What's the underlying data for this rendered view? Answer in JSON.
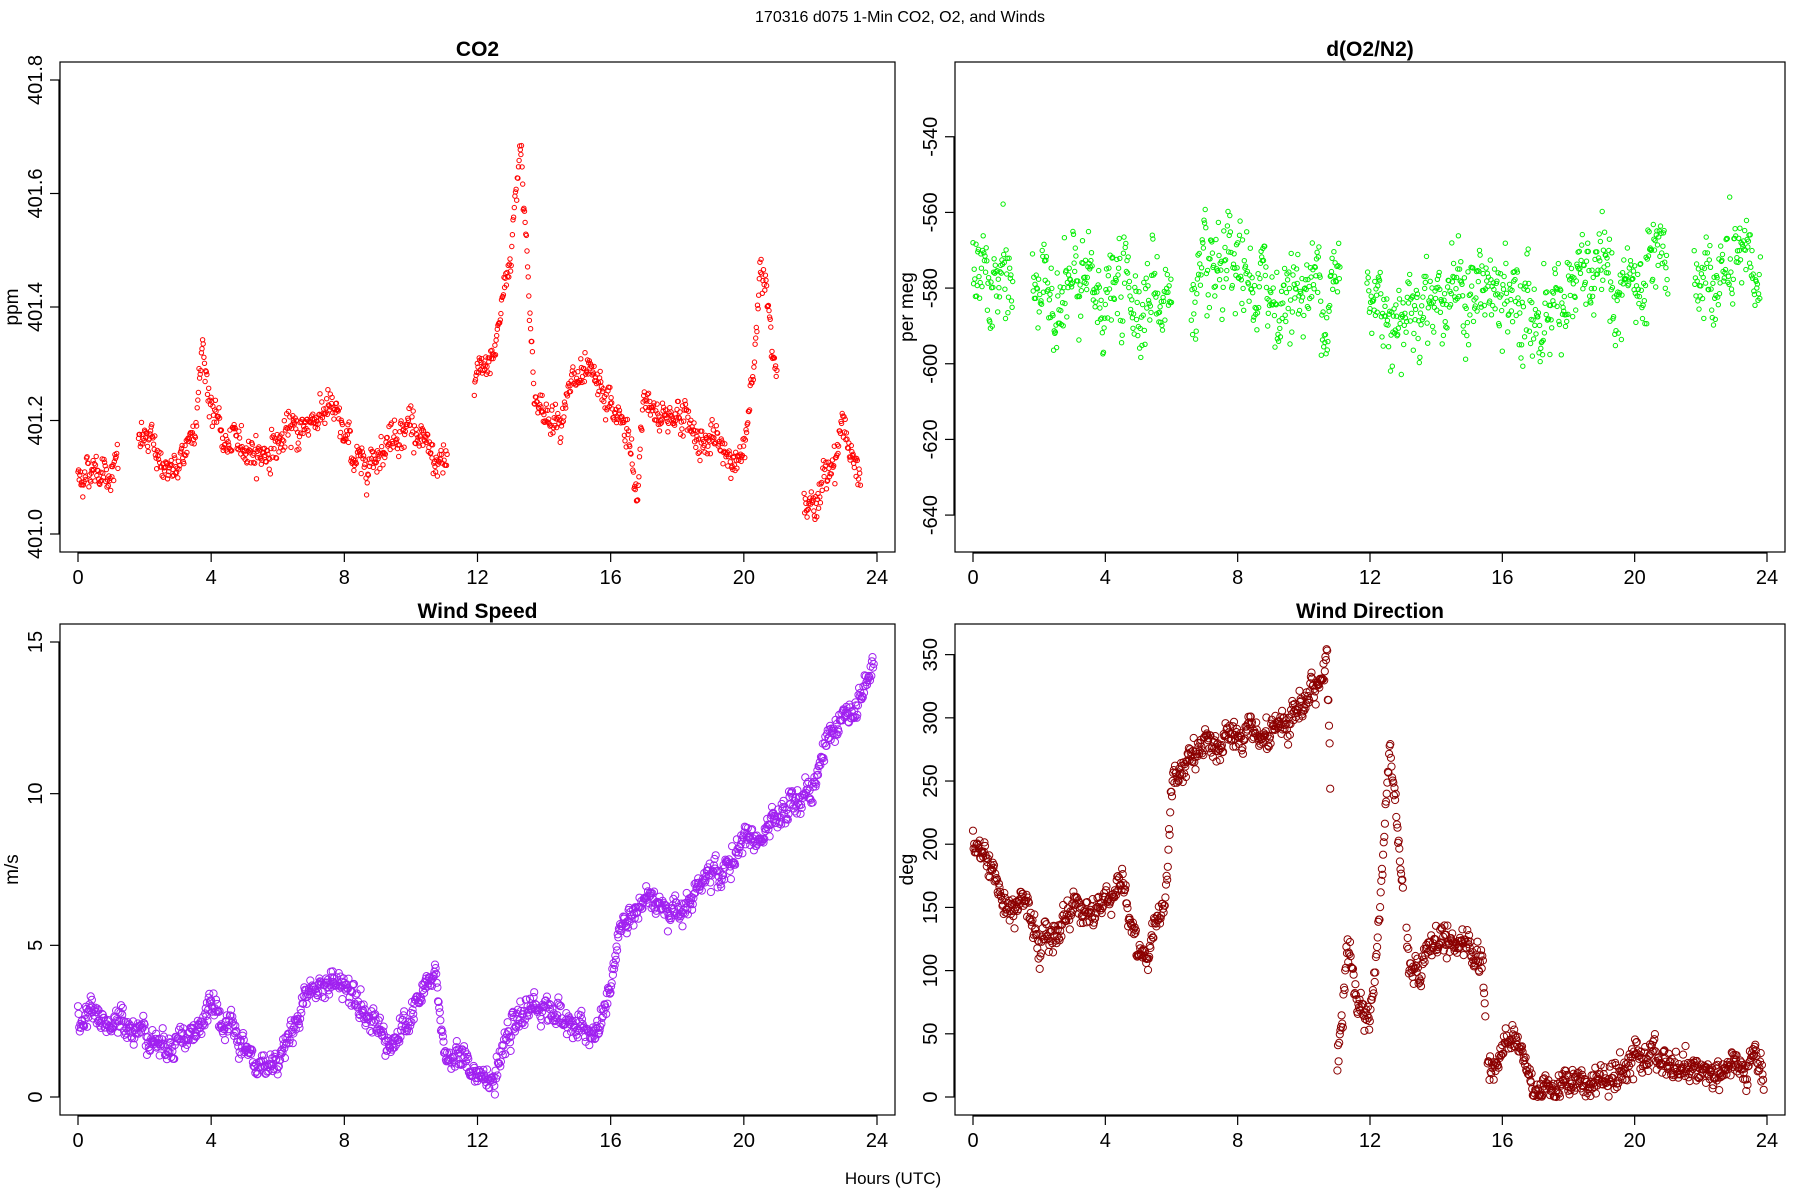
{
  "figure": {
    "suptitle": "170316   d075   1-Min CO2, O2, and Winds",
    "xlabel": "Hours (UTC)"
  },
  "chart_data": [
    {
      "type": "scatter",
      "title": "CO2",
      "ylabel": "ppm",
      "xlim": [
        0,
        24
      ],
      "ylim": [
        401.0,
        401.8
      ],
      "xticks": [
        "0",
        "4",
        "8",
        "12",
        "16",
        "20",
        "24"
      ],
      "xtick_values": [
        0,
        4,
        8,
        12,
        16,
        20,
        24
      ],
      "yticks": [
        "401.0",
        "401.2",
        "401.4",
        "401.6",
        "401.8"
      ],
      "ytick_values": [
        401.0,
        401.2,
        401.4,
        401.6,
        401.8
      ],
      "color": "#ff0000",
      "marker_radius": 2.2,
      "gaps": [
        [
          1.2,
          1.8
        ],
        [
          11.1,
          11.9
        ],
        [
          21.0,
          21.8
        ]
      ],
      "x": [
        0.0,
        0.5,
        1.0,
        2.0,
        2.5,
        3.0,
        3.5,
        3.75,
        4.0,
        4.5,
        5.0,
        5.5,
        6.0,
        6.5,
        7.0,
        7.5,
        8.0,
        8.5,
        9.0,
        9.5,
        10.0,
        10.5,
        11.0,
        12.0,
        12.5,
        13.0,
        13.3,
        13.7,
        14.0,
        14.5,
        15.0,
        15.5,
        16.0,
        16.5,
        16.8,
        17.0,
        17.5,
        18.0,
        18.5,
        19.0,
        19.5,
        20.0,
        20.3,
        20.5,
        21.0,
        22.0,
        22.5,
        23.0,
        23.5
      ],
      "y": [
        401.1,
        401.12,
        401.11,
        401.17,
        401.13,
        401.1,
        401.2,
        401.33,
        401.22,
        401.15,
        401.16,
        401.14,
        401.16,
        401.18,
        401.2,
        401.23,
        401.17,
        401.12,
        401.15,
        401.18,
        401.2,
        401.14,
        401.11,
        401.27,
        401.32,
        401.5,
        401.7,
        401.25,
        401.2,
        401.22,
        401.27,
        401.26,
        401.22,
        401.18,
        401.05,
        401.25,
        401.2,
        401.22,
        401.18,
        401.16,
        401.14,
        401.13,
        401.3,
        401.5,
        401.3,
        401.04,
        401.1,
        401.2,
        401.08
      ],
      "spread": 0.02,
      "points_per_unit": 55
    },
    {
      "type": "scatter",
      "title": "d(O2/N2)",
      "ylabel": "per meg",
      "xlim": [
        0,
        24
      ],
      "ylim": [
        -645,
        -525
      ],
      "xticks": [
        "0",
        "4",
        "8",
        "12",
        "16",
        "20",
        "24"
      ],
      "xtick_values": [
        0,
        4,
        8,
        12,
        16,
        20,
        24
      ],
      "yticks": [
        "-640",
        "-620",
        "-600",
        "-580",
        "-560",
        "-540"
      ],
      "ytick_values": [
        -640,
        -620,
        -600,
        -580,
        -560,
        -540
      ],
      "color": "#00ee00",
      "marker_radius": 2.2,
      "gaps": [
        [
          1.2,
          1.8
        ],
        [
          6.0,
          6.6
        ],
        [
          11.1,
          11.9
        ],
        [
          21.0,
          21.8
        ]
      ],
      "x": [
        0.0,
        1.0,
        2.0,
        3.0,
        4.0,
        5.0,
        6.0,
        7.0,
        8.0,
        9.0,
        10.0,
        11.0,
        12.0,
        13.0,
        14.0,
        15.0,
        16.0,
        17.0,
        18.0,
        19.0,
        20.0,
        21.0,
        22.0,
        23.0,
        23.8
      ],
      "y": [
        -578,
        -580,
        -580,
        -581,
        -582,
        -581,
        -582,
        -582,
        -579,
        -582,
        -580,
        -579,
        -583,
        -585,
        -580,
        -582,
        -583,
        -588,
        -580,
        -579,
        -581,
        -579,
        -578,
        -577,
        -576
      ],
      "spread": 8,
      "points_per_unit": 55
    },
    {
      "type": "scatter",
      "title": "Wind Speed",
      "ylabel": "m/s",
      "xlim": [
        0,
        24
      ],
      "ylim": [
        0,
        15
      ],
      "xticks": [
        "0",
        "4",
        "8",
        "12",
        "16",
        "20",
        "24"
      ],
      "xtick_values": [
        0,
        4,
        8,
        12,
        16,
        20,
        24
      ],
      "yticks": [
        "0",
        "5",
        "10",
        "15"
      ],
      "ytick_values": [
        0,
        5,
        10,
        15
      ],
      "color": "#a020f0",
      "marker_radius": 3.6,
      "gaps": [],
      "x": [
        0.0,
        0.5,
        1.0,
        1.5,
        2.0,
        2.5,
        3.0,
        3.5,
        4.0,
        4.5,
        5.0,
        5.5,
        6.0,
        6.5,
        7.0,
        7.5,
        8.0,
        8.5,
        9.0,
        9.5,
        10.0,
        10.5,
        10.7,
        11.0,
        11.5,
        12.0,
        12.5,
        13.0,
        13.5,
        14.0,
        14.5,
        15.0,
        15.5,
        16.0,
        16.3,
        16.5,
        17.0,
        17.5,
        18.0,
        18.5,
        19.0,
        19.5,
        20.0,
        20.5,
        21.0,
        21.5,
        22.0,
        22.5,
        23.0,
        23.5,
        23.9
      ],
      "y": [
        2.5,
        2.8,
        2.3,
        2.5,
        2.2,
        1.7,
        2.0,
        2.1,
        2.8,
        2.3,
        1.5,
        0.9,
        1.3,
        2.4,
        3.5,
        3.7,
        3.8,
        3.3,
        2.3,
        1.8,
        2.6,
        3.6,
        4.2,
        1.5,
        1.2,
        0.8,
        0.6,
        2.0,
        3.0,
        3.0,
        2.7,
        2.2,
        1.9,
        3.5,
        5.7,
        5.8,
        6.3,
        6.4,
        6.2,
        6.8,
        7.2,
        7.5,
        8.5,
        8.5,
        8.9,
        9.8,
        10.0,
        11.8,
        12.5,
        13.0,
        14.5
      ],
      "spread": 0.3,
      "points_per_unit": 55
    },
    {
      "type": "scatter",
      "title": "Wind Direction",
      "ylabel": "deg",
      "xlim": [
        0,
        24
      ],
      "ylim": [
        0,
        360
      ],
      "xticks": [
        "0",
        "4",
        "8",
        "12",
        "16",
        "20",
        "24"
      ],
      "xtick_values": [
        0,
        4,
        8,
        12,
        16,
        20,
        24
      ],
      "yticks": [
        "0",
        "50",
        "100",
        "150",
        "200",
        "250",
        "300",
        "350"
      ],
      "ytick_values": [
        0,
        50,
        100,
        150,
        200,
        250,
        300,
        350
      ],
      "color": "#8b0000",
      "marker_radius": 3.6,
      "gaps": [
        [
          10.8,
          11.0
        ],
        [
          13.0,
          13.1
        ],
        [
          15.5,
          15.55
        ]
      ],
      "x": [
        0.0,
        0.3,
        0.6,
        0.8,
        1.0,
        1.5,
        2.0,
        2.5,
        3.0,
        3.5,
        4.0,
        4.5,
        4.8,
        5.0,
        5.3,
        5.5,
        5.8,
        6.0,
        6.5,
        7.0,
        7.5,
        8.0,
        8.5,
        9.0,
        9.5,
        10.0,
        10.5,
        10.7,
        11.0,
        11.3,
        11.6,
        12.0,
        12.3,
        12.6,
        12.9,
        13.2,
        13.5,
        14.0,
        14.5,
        15.0,
        15.4,
        15.6,
        16.0,
        16.5,
        17.0,
        17.5,
        18.0,
        18.5,
        19.0,
        19.5,
        20.0,
        20.5,
        21.0,
        21.5,
        22.0,
        22.5,
        23.0,
        23.5,
        23.9
      ],
      "y": [
        205,
        195,
        185,
        160,
        145,
        165,
        120,
        130,
        155,
        145,
        155,
        175,
        130,
        115,
        110,
        140,
        155,
        240,
        265,
        275,
        280,
        285,
        280,
        285,
        290,
        310,
        330,
        355,
        20,
        120,
        80,
        60,
        150,
        280,
        200,
        100,
        105,
        125,
        125,
        120,
        110,
        15,
        45,
        40,
        5,
        10,
        12,
        10,
        12,
        15,
        30,
        32,
        25,
        22,
        22,
        20,
        22,
        22,
        20
      ],
      "spread": 8,
      "points_per_unit": 55
    }
  ]
}
